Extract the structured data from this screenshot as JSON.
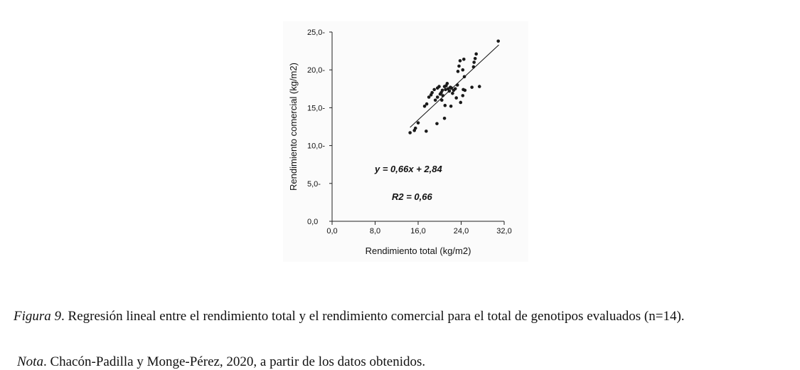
{
  "chart_data": {
    "type": "scatter",
    "xlabel": "Rendimiento total (kg/m2)",
    "ylabel": "Rendimiento comercial (kg/m2)",
    "xlim": [
      0,
      32
    ],
    "ylim": [
      0,
      25
    ],
    "x_ticks": [
      "0,0",
      "8,0",
      "16,0",
      "24,0",
      "32,0"
    ],
    "y_ticks": [
      "0,0",
      "5,0-",
      "10,0-",
      "15,0-",
      "20,0-",
      "25,0-"
    ],
    "x_tick_values": [
      0,
      8,
      16,
      24,
      32
    ],
    "y_tick_values": [
      0,
      5,
      10,
      15,
      20,
      25
    ],
    "equation": "y = 0,66x + 2,84",
    "r2_label": "R2 = 0,66",
    "trendline": {
      "slope": 0.66,
      "intercept": 2.84,
      "x_range": [
        14.5,
        31
      ]
    },
    "points": [
      [
        14.5,
        11.7
      ],
      [
        15.5,
        12.3
      ],
      [
        15.3,
        12.0
      ],
      [
        17.5,
        11.9
      ],
      [
        19.5,
        12.9
      ],
      [
        20.9,
        13.6
      ],
      [
        16.0,
        13.0
      ],
      [
        17.2,
        15.2
      ],
      [
        17.6,
        15.5
      ],
      [
        18.0,
        16.4
      ],
      [
        18.4,
        16.7
      ],
      [
        19.2,
        16.0
      ],
      [
        19.6,
        16.4
      ],
      [
        19.6,
        17.6
      ],
      [
        19.9,
        17.8
      ],
      [
        20.1,
        16.8
      ],
      [
        20.3,
        17.0
      ],
      [
        20.5,
        17.3
      ],
      [
        20.6,
        16.6
      ],
      [
        20.9,
        17.8
      ],
      [
        21.1,
        17.4
      ],
      [
        21.2,
        17.9
      ],
      [
        21.4,
        18.2
      ],
      [
        21.6,
        17.5
      ],
      [
        21.8,
        17.2
      ],
      [
        22.0,
        17.7
      ],
      [
        22.2,
        17.6
      ],
      [
        22.4,
        16.9
      ],
      [
        22.6,
        17.3
      ],
      [
        22.9,
        17.5
      ],
      [
        20.4,
        16.0
      ],
      [
        21.0,
        15.3
      ],
      [
        22.1,
        15.2
      ],
      [
        23.9,
        15.7
      ],
      [
        24.3,
        16.6
      ],
      [
        23.3,
        18.0
      ],
      [
        24.4,
        17.4
      ],
      [
        24.7,
        17.3
      ],
      [
        24.6,
        19.1
      ],
      [
        26.0,
        17.7
      ],
      [
        27.4,
        17.8
      ],
      [
        23.4,
        19.8
      ],
      [
        23.6,
        20.5
      ],
      [
        23.8,
        21.2
      ],
      [
        24.5,
        21.4
      ],
      [
        24.3,
        20.0
      ],
      [
        26.3,
        20.4
      ],
      [
        26.4,
        21.0
      ],
      [
        26.6,
        21.5
      ],
      [
        26.8,
        22.1
      ],
      [
        30.9,
        23.8
      ],
      [
        19.0,
        17.4
      ],
      [
        18.6,
        17.0
      ],
      [
        23.1,
        16.3
      ]
    ]
  },
  "caption": {
    "figure_label": "Figura 9",
    "text": ". Regresión lineal entre el rendimiento total y el rendimiento comercial para el total de genotipos evaluados (n=14).",
    "note_label": "Nota",
    "note_text": ". Chacón-Padilla y Monge-Pérez, 2020, a partir de los datos obtenidos."
  }
}
